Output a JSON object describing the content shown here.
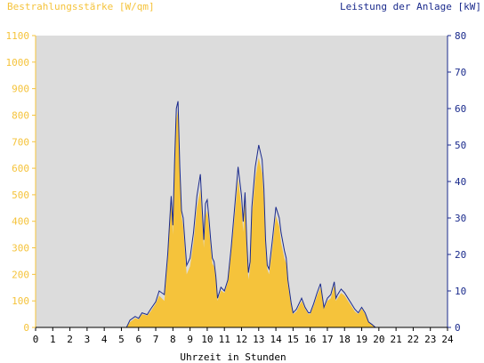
{
  "chart_data": {
    "type": "area",
    "title_left": "Bestrahlungsstärke [W/qm]",
    "title_right": "Leistung der Anlage [kW]",
    "xlabel": "Uhrzeit in Stunden",
    "xlim": [
      0,
      24
    ],
    "ylim_left": [
      0,
      1100
    ],
    "ylim_right": [
      0,
      80
    ],
    "x_ticks": [
      "0",
      "1",
      "2",
      "3",
      "4",
      "5",
      "6",
      "7",
      "8",
      "9",
      "10",
      "11",
      "12",
      "13",
      "14",
      "15",
      "16",
      "17",
      "18",
      "19",
      "20",
      "21",
      "22",
      "23",
      "24"
    ],
    "y_left_ticks": [
      "0",
      "100",
      "200",
      "300",
      "400",
      "500",
      "600",
      "700",
      "800",
      "900",
      "1000",
      "1100"
    ],
    "y_right_ticks": [
      "0",
      "10",
      "20",
      "30",
      "40",
      "50",
      "60",
      "70",
      "80"
    ],
    "colors": {
      "irradiance_fill": "#f5c33b",
      "power_line": "#1a2a8c",
      "plot_bg": "#dcdcdc"
    },
    "grid": false,
    "series": [
      {
        "unit": "W/qm",
        "x": [
          0,
          5.3,
          5.5,
          5.8,
          6.0,
          6.2,
          6.5,
          6.7,
          7.0,
          7.2,
          7.5,
          7.7,
          7.9,
          8.0,
          8.1,
          8.2,
          8.3,
          8.4,
          8.5,
          8.6,
          8.8,
          9.0,
          9.2,
          9.4,
          9.6,
          9.8,
          9.9,
          10.0,
          10.1,
          10.2,
          10.3,
          10.4,
          10.5,
          10.6,
          10.8,
          11.0,
          11.2,
          11.4,
          11.6,
          11.8,
          12.0,
          12.1,
          12.2,
          12.3,
          12.4,
          12.5,
          12.6,
          12.8,
          13.0,
          13.2,
          13.3,
          13.4,
          13.5,
          13.6,
          13.8,
          14.0,
          14.2,
          14.3,
          14.5,
          14.6,
          14.7,
          14.9,
          15.0,
          15.2,
          15.5,
          15.7,
          15.9,
          16.0,
          16.2,
          16.4,
          16.6,
          16.8,
          17.0,
          17.2,
          17.4,
          17.5,
          17.6,
          17.8,
          18.0,
          18.2,
          18.4,
          18.6,
          18.8,
          19.0,
          19.2,
          19.4,
          19.6,
          19.8,
          20.0,
          24
        ],
        "values": [
          0,
          0,
          20,
          35,
          30,
          50,
          45,
          60,
          90,
          120,
          100,
          250,
          480,
          350,
          600,
          780,
          820,
          580,
          420,
          380,
          200,
          230,
          320,
          450,
          520,
          300,
          420,
          440,
          380,
          300,
          240,
          230,
          180,
          100,
          140,
          130,
          170,
          280,
          420,
          560,
          450,
          360,
          480,
          300,
          180,
          220,
          420,
          560,
          640,
          580,
          480,
          300,
          220,
          200,
          300,
          420,
          380,
          320,
          260,
          240,
          160,
          80,
          50,
          60,
          100,
          70,
          50,
          50,
          80,
          120,
          150,
          70,
          100,
          110,
          160,
          100,
          110,
          130,
          120,
          100,
          80,
          60,
          50,
          70,
          50,
          20,
          10,
          0,
          0,
          0
        ]
      },
      {
        "unit": "kW",
        "x": [
          0,
          5.3,
          5.5,
          5.8,
          6.0,
          6.2,
          6.5,
          6.7,
          7.0,
          7.2,
          7.5,
          7.7,
          7.9,
          8.0,
          8.1,
          8.2,
          8.3,
          8.4,
          8.5,
          8.6,
          8.8,
          9.0,
          9.2,
          9.4,
          9.6,
          9.8,
          9.9,
          10.0,
          10.1,
          10.2,
          10.3,
          10.4,
          10.5,
          10.6,
          10.8,
          11.0,
          11.2,
          11.4,
          11.6,
          11.8,
          12.0,
          12.1,
          12.2,
          12.3,
          12.4,
          12.5,
          12.6,
          12.8,
          13.0,
          13.2,
          13.3,
          13.4,
          13.5,
          13.6,
          13.8,
          14.0,
          14.2,
          14.3,
          14.5,
          14.6,
          14.7,
          14.9,
          15.0,
          15.2,
          15.5,
          15.7,
          15.9,
          16.0,
          16.2,
          16.4,
          16.6,
          16.8,
          17.0,
          17.2,
          17.4,
          17.5,
          17.6,
          17.8,
          18.0,
          18.2,
          18.4,
          18.6,
          18.8,
          19.0,
          19.2,
          19.4,
          19.6,
          19.8,
          20.0,
          24
        ],
        "values": [
          0,
          0,
          2,
          3,
          2.5,
          4,
          3.5,
          5,
          7,
          10,
          9,
          20,
          36,
          28,
          46,
          60,
          62,
          44,
          32,
          30,
          17,
          19,
          26,
          36,
          42,
          24,
          34,
          35,
          30,
          24,
          19,
          18,
          14,
          8,
          11,
          10,
          13,
          22,
          33,
          44,
          36,
          29,
          37,
          24,
          15,
          18,
          33,
          44,
          50,
          46,
          38,
          24,
          17,
          16,
          24,
          33,
          30,
          26,
          21,
          19,
          13,
          6.5,
          4,
          5,
          8,
          5.5,
          4,
          4,
          6.5,
          9.5,
          12,
          5.5,
          8,
          9,
          12.5,
          8,
          9,
          10.5,
          9.5,
          8,
          6.5,
          5,
          4,
          5.5,
          4,
          1.5,
          0.8,
          0,
          0,
          0
        ]
      }
    ]
  }
}
